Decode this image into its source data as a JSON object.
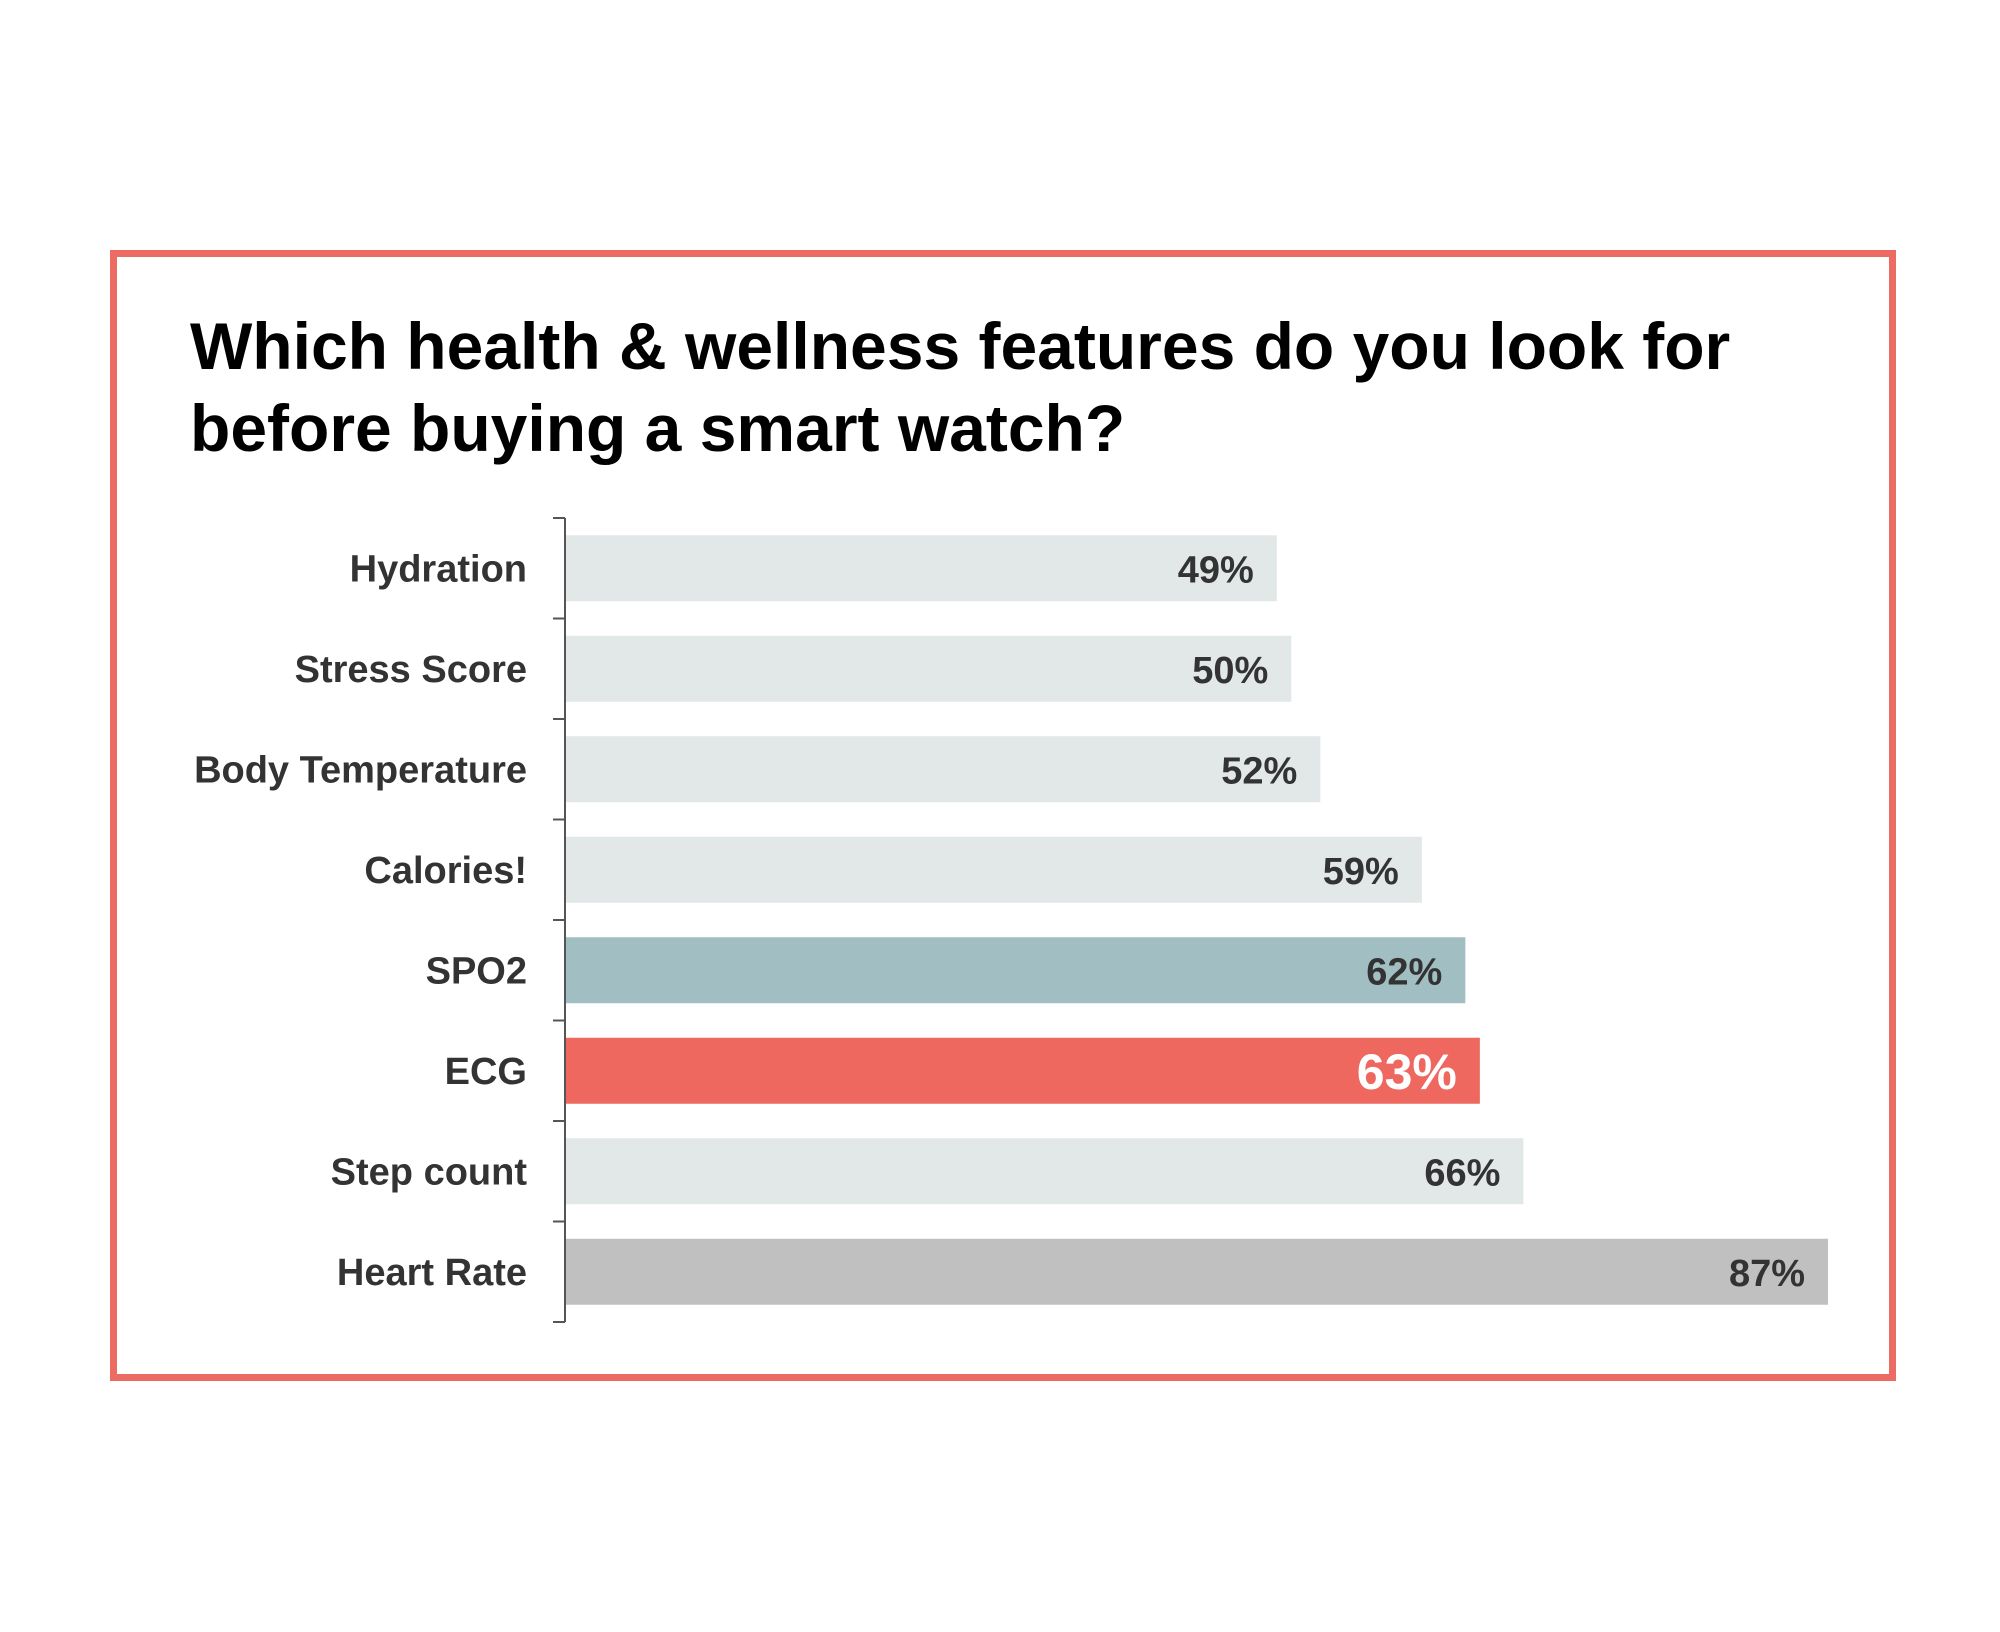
{
  "chart_data": {
    "type": "bar",
    "orientation": "horizontal",
    "title": "Which health & wellness features do you look for before buying a smart watch?",
    "xlabel": "",
    "ylabel": "",
    "categories": [
      "Hydration",
      "Stress Score",
      "Body Temperature",
      "Calories!",
      "SPO2",
      "ECG",
      "Step count",
      "Heart Rate"
    ],
    "values": [
      49,
      50,
      52,
      59,
      62,
      63,
      66,
      87
    ],
    "labels": [
      "49%",
      "50%",
      "52%",
      "59%",
      "62%",
      "63%",
      "66%",
      "87%"
    ],
    "bar_colors": [
      "#e2e7e7",
      "#e2e7e7",
      "#e2e7e7",
      "#e2e7e7",
      "#a1bfc2",
      "#ee6860",
      "#e2e7e7",
      "#c0c0c0"
    ],
    "label_colors": [
      "#333333",
      "#333333",
      "#333333",
      "#333333",
      "#333333",
      "#ffffff",
      "#333333",
      "#333333"
    ],
    "highlight": "ECG",
    "xlim": [
      0,
      87
    ],
    "grid": false,
    "legend": "none"
  },
  "colors": {
    "frame_border": "#ec6b63",
    "title_text": "#000000",
    "axis": "#555555",
    "category_text": "#333333"
  }
}
